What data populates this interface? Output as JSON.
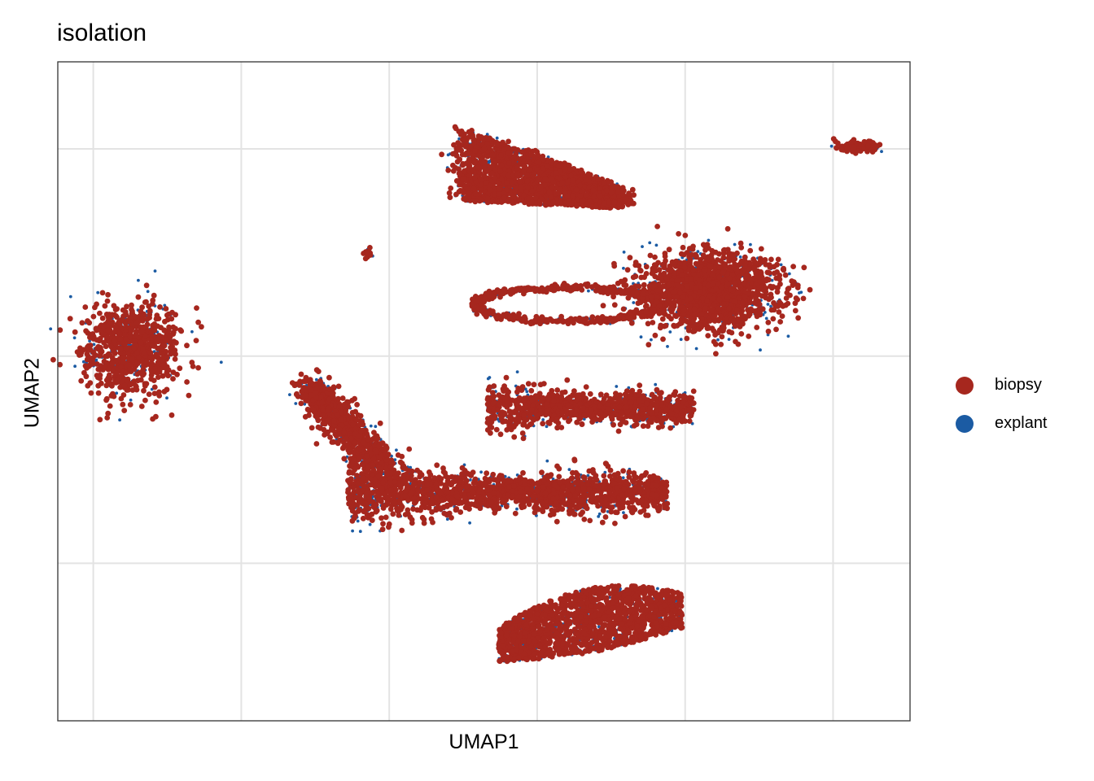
{
  "chart_data": {
    "type": "scatter",
    "title": "isolation",
    "xlabel": "UMAP1",
    "ylabel": "UMAP2",
    "xlim": [
      -10.2,
      18.6
    ],
    "ylim": [
      -17.6,
      14.2
    ],
    "grid": true,
    "x_ticks": [
      -9,
      -4,
      1,
      6,
      11,
      16
    ],
    "y_ticks": [
      -10,
      0,
      10
    ],
    "tick_labels_shown": false,
    "legend_position": "right",
    "series": [
      {
        "name": "biopsy",
        "color": "#A6271E"
      },
      {
        "name": "explant",
        "color": "#1B5BA3"
      }
    ],
    "clusters": [
      {
        "id": "top",
        "center": [
          4.8,
          8.3
        ],
        "spread": [
          2.9,
          1.8
        ],
        "shape": "teardrop"
      },
      {
        "id": "right",
        "center": [
          11.8,
          3.2
        ],
        "spread": [
          2.3,
          1.8
        ],
        "shape": "blob"
      },
      {
        "id": "left",
        "center": [
          -7.7,
          0.3
        ],
        "spread": [
          1.6,
          2.2
        ],
        "shape": "blob"
      },
      {
        "id": "ring",
        "center": [
          7.0,
          2.5
        ],
        "spread": [
          3.1,
          0.8
        ],
        "shape": "ring"
      },
      {
        "id": "middle-right",
        "center": [
          7.8,
          -2.5
        ],
        "spread": [
          3.5,
          0.8
        ],
        "shape": "band"
      },
      {
        "id": "lower-left-arm",
        "center": [
          0.2,
          -4.0
        ],
        "spread": [
          1.9,
          2.6
        ],
        "shape": "arm"
      },
      {
        "id": "lower-center",
        "center": [
          5.0,
          -6.6
        ],
        "spread": [
          5.4,
          1.0
        ],
        "shape": "band"
      },
      {
        "id": "bottom",
        "center": [
          7.8,
          -13.0
        ],
        "spread": [
          3.1,
          1.4
        ],
        "shape": "crescent"
      },
      {
        "id": "far-right",
        "center": [
          16.8,
          10.1
        ],
        "spread": [
          0.7,
          0.3
        ],
        "shape": "blob"
      },
      {
        "id": "small",
        "center": [
          0.3,
          5.0
        ],
        "spread": [
          0.2,
          0.2
        ],
        "shape": "blob"
      }
    ]
  }
}
